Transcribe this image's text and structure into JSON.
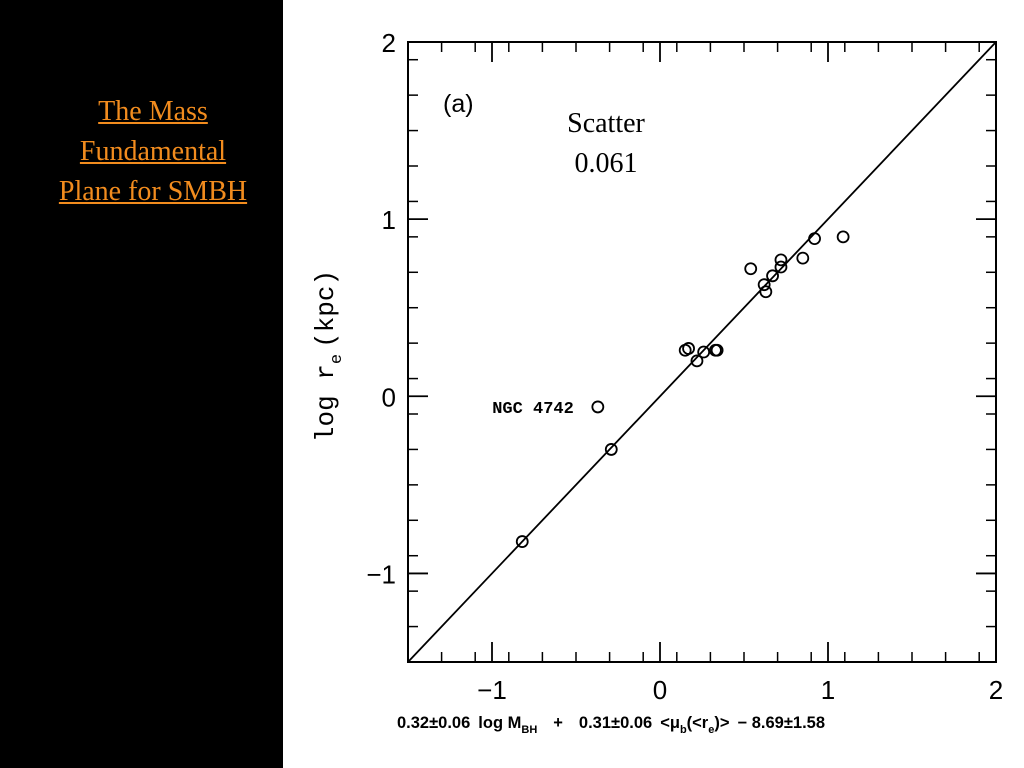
{
  "slide": {
    "title_lines": [
      "The Mass",
      "Fundamental",
      "Plane for SMBH"
    ],
    "title_color": "#f28c1e",
    "background": "#000000"
  },
  "chart_data": {
    "type": "scatter",
    "panel_label": "(a)",
    "scatter_label": "Scatter",
    "scatter_value": "0.061",
    "ylabel": "log r",
    "ylabel_sub": "e",
    "ylabel_unit": "(kpc)",
    "xlabel_parts": {
      "coef1": "0.32±0.06",
      "log_text": "log M",
      "mass_sub": "BH",
      "plus": "+",
      "coef2": "0.31±0.06",
      "mu_open": "<μ",
      "mu_sub": "b",
      "mu_mid": "(<r",
      "re_sub": "e",
      "mu_close": ")>",
      "minus_const": "− 8.69±1.58"
    },
    "xlim": [
      -1.5,
      2
    ],
    "ylim": [
      -1.5,
      2
    ],
    "xticks": [
      -1,
      0,
      1,
      2
    ],
    "xtick_labels": [
      "−1",
      "0",
      "1",
      "2"
    ],
    "yticks": [
      -1,
      0,
      1,
      2
    ],
    "ytick_labels": [
      "−1",
      "0",
      "1",
      "2"
    ],
    "minor_step": 0.2,
    "reference_line": "y = x",
    "points": [
      {
        "x": -0.82,
        "y": -0.82
      },
      {
        "x": -0.29,
        "y": -0.3
      },
      {
        "x": -0.37,
        "y": -0.06
      },
      {
        "x": 0.15,
        "y": 0.26
      },
      {
        "x": 0.17,
        "y": 0.27
      },
      {
        "x": 0.22,
        "y": 0.2
      },
      {
        "x": 0.26,
        "y": 0.25
      },
      {
        "x": 0.33,
        "y": 0.26
      },
      {
        "x": 0.34,
        "y": 0.26
      },
      {
        "x": 0.54,
        "y": 0.72
      },
      {
        "x": 0.62,
        "y": 0.63
      },
      {
        "x": 0.63,
        "y": 0.59
      },
      {
        "x": 0.67,
        "y": 0.68
      },
      {
        "x": 0.72,
        "y": 0.77
      },
      {
        "x": 0.72,
        "y": 0.73
      },
      {
        "x": 0.85,
        "y": 0.78
      },
      {
        "x": 0.92,
        "y": 0.89
      },
      {
        "x": 1.09,
        "y": 0.9
      }
    ],
    "annotations": [
      {
        "text": "NGC 4742",
        "x": -0.37,
        "y": -0.06
      }
    ]
  }
}
